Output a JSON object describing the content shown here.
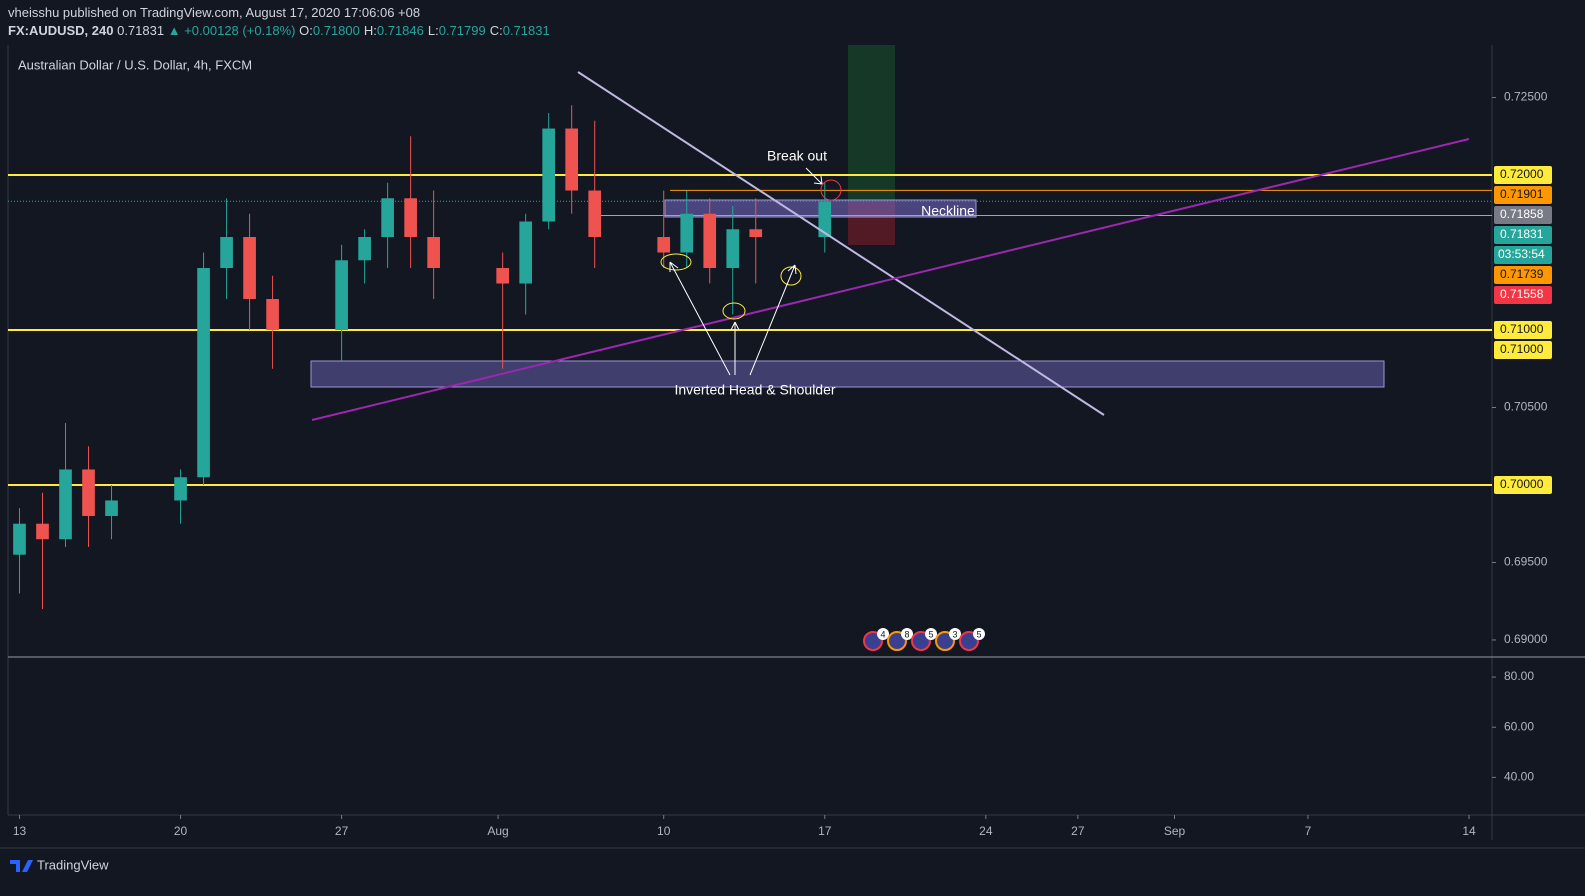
{
  "header": {
    "published": "vheisshu published on TradingView.com, August 17, 2020 17:06:06 +08",
    "symbol": "FX:AUDUSD, 240",
    "last": "0.71831",
    "change": "▲ +0.00128 (+0.18%)",
    "ohlc": [
      {
        "label": "O:",
        "value": "0.71800"
      },
      {
        "label": "H:",
        "value": "0.71846"
      },
      {
        "label": "L:",
        "value": "0.71799"
      },
      {
        "label": "C:",
        "value": "0.71831"
      }
    ]
  },
  "chart_data": {
    "type": "candlestick",
    "title": "Australian Dollar / U.S. Dollar, 4h, FXCM",
    "x": [
      0,
      1,
      2,
      3,
      4,
      7,
      8,
      9,
      10,
      11,
      14,
      15,
      16,
      17,
      18,
      21,
      22,
      23,
      24,
      25,
      28,
      29,
      30,
      31,
      32,
      35
    ],
    "open": [
      0.6955,
      0.6975,
      0.6965,
      0.701,
      0.698,
      0.699,
      0.7005,
      0.714,
      0.716,
      0.712,
      0.71,
      0.7145,
      0.716,
      0.7185,
      0.716,
      0.714,
      0.713,
      0.717,
      0.723,
      0.719,
      0.716,
      0.715,
      0.7175,
      0.714,
      0.7165,
      0.716
    ],
    "high": [
      0.6985,
      0.6995,
      0.704,
      0.7025,
      0.7,
      0.701,
      0.715,
      0.7185,
      0.7175,
      0.7135,
      0.7155,
      0.7165,
      0.7195,
      0.7225,
      0.719,
      0.715,
      0.7175,
      0.724,
      0.7245,
      0.7235,
      0.719,
      0.719,
      0.7185,
      0.718,
      0.7185,
      0.7195
    ],
    "low": [
      0.693,
      0.692,
      0.696,
      0.696,
      0.6965,
      0.6975,
      0.7,
      0.712,
      0.71,
      0.7075,
      0.708,
      0.713,
      0.714,
      0.714,
      0.712,
      0.7075,
      0.711,
      0.7165,
      0.7175,
      0.714,
      0.714,
      0.714,
      0.713,
      0.711,
      0.713,
      0.715
    ],
    "close": [
      0.6975,
      0.6965,
      0.701,
      0.698,
      0.699,
      0.7005,
      0.714,
      0.716,
      0.712,
      0.71,
      0.7145,
      0.716,
      0.7185,
      0.716,
      0.714,
      0.713,
      0.717,
      0.723,
      0.719,
      0.716,
      0.715,
      0.7175,
      0.714,
      0.7165,
      0.716,
      0.7183
    ],
    "up_color": "#26a69a",
    "down_color": "#ef5350",
    "xlim": [
      -0.5,
      64
    ],
    "xticks": [
      {
        "value": 0,
        "label": "13"
      },
      {
        "value": 7,
        "label": "20"
      },
      {
        "value": 14,
        "label": "27"
      },
      {
        "value": 20.8,
        "label": "Aug"
      },
      {
        "value": 28,
        "label": "10"
      },
      {
        "value": 35,
        "label": "17"
      },
      {
        "value": 42,
        "label": "24"
      },
      {
        "value": 46,
        "label": "27"
      },
      {
        "value": 50.2,
        "label": "Sep"
      },
      {
        "value": 56,
        "label": "7"
      },
      {
        "value": 63,
        "label": "14"
      }
    ],
    "ylim": [
      0.6889,
      0.72839
    ],
    "yticks": [
      {
        "value": 0.725,
        "label": "0.72500"
      },
      {
        "value": 0.705,
        "label": "0.70500"
      },
      {
        "value": 0.695,
        "label": "0.69500"
      },
      {
        "value": 0.69,
        "label": "0.69000"
      }
    ],
    "levels": [
      {
        "value": 0.72,
        "color": "#ffeb3b"
      },
      {
        "value": 0.71,
        "color": "#ffeb3b"
      },
      {
        "value": 0.7,
        "color": "#ffeb3b"
      },
      {
        "value": 0.71901,
        "color": "#ff9800"
      },
      {
        "value": 0.71739,
        "color": "#ff9800"
      }
    ],
    "price_labels": [
      {
        "value": 0.72,
        "label": "0.72000",
        "color": "#ffeb3b"
      },
      {
        "value": 0.71901,
        "label": "0.71901",
        "color": "#ff9800"
      },
      {
        "value": 0.71858,
        "label": "0.71858",
        "color": "#787b86"
      },
      {
        "value": 0.71831,
        "label": "0.71831",
        "color": "#26a69a"
      },
      {
        "value": 0.71739,
        "label": "0.71739",
        "color": "#ff9800"
      },
      {
        "value": 0.71558,
        "label": "0.71558",
        "color": "#f23645"
      },
      {
        "value": 0.71,
        "label": "0.71000",
        "color": "#ffeb3b"
      },
      {
        "value": 0.71,
        "label": "0.71000",
        "color": "#ffeb3b"
      },
      {
        "value": 0.7,
        "label": "0.70000",
        "color": "#ffeb3b"
      }
    ],
    "countdown": "03:53:54",
    "annotations": [
      "Break out",
      "Neckline",
      "Inverted Head & Shoulder"
    ],
    "events": [
      "4",
      "8",
      "5",
      "3",
      "5"
    ],
    "indicator": {
      "ylim": [
        25,
        88
      ],
      "yticks": [
        {
          "value": 80,
          "label": "80.00"
        },
        {
          "value": 60,
          "label": "60.00"
        },
        {
          "value": 40,
          "label": "40.00"
        }
      ]
    }
  },
  "footer": {
    "brand": "TradingView"
  }
}
